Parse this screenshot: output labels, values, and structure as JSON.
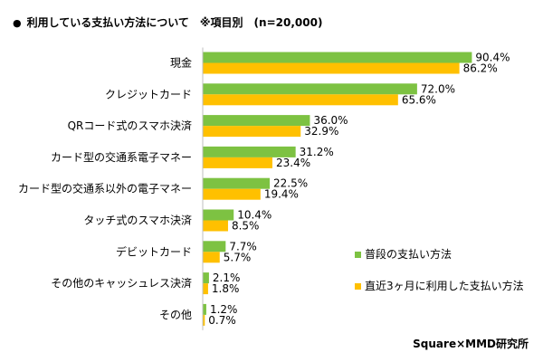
{
  "title": "利用している支払い方法について　※項目別　(n=20,000)",
  "bullet": "●",
  "credit": "Square×MMD研究所",
  "colors": {
    "series_usual": "#7DC242",
    "series_recent": "#FFC000",
    "axis": "#BFBFBF"
  },
  "chart_data": {
    "type": "bar",
    "orientation": "horizontal",
    "title": "利用している支払い方法について　※項目別　(n=20,000)",
    "categories": [
      "現金",
      "クレジットカード",
      "QRコード式のスマホ決済",
      "カード型の交通系電子マネー",
      "カード型の交通系以外の電子マネー",
      "タッチ式のスマホ決済",
      "デビットカード",
      "その他のキャッシュレス決済",
      "その他"
    ],
    "series": [
      {
        "name": "普段の支払い方法",
        "values": [
          90.4,
          72.0,
          36.0,
          31.2,
          22.5,
          10.4,
          7.7,
          2.1,
          1.2
        ]
      },
      {
        "name": "直近3ヶ月に利用した支払い方法",
        "values": [
          86.2,
          65.6,
          32.9,
          23.4,
          19.4,
          8.5,
          5.7,
          1.8,
          0.7
        ]
      }
    ],
    "value_labels": [
      [
        "90.4%",
        "72.0%",
        "36.0%",
        "31.2%",
        "22.5%",
        "10.4%",
        "7.7%",
        "2.1%",
        "1.2%"
      ],
      [
        "86.2%",
        "65.6%",
        "32.9%",
        "23.4%",
        "19.4%",
        "8.5%",
        "5.7%",
        "1.8%",
        "0.7%"
      ]
    ],
    "xlim": [
      0,
      100
    ],
    "legend_position": "right",
    "grid": false
  }
}
